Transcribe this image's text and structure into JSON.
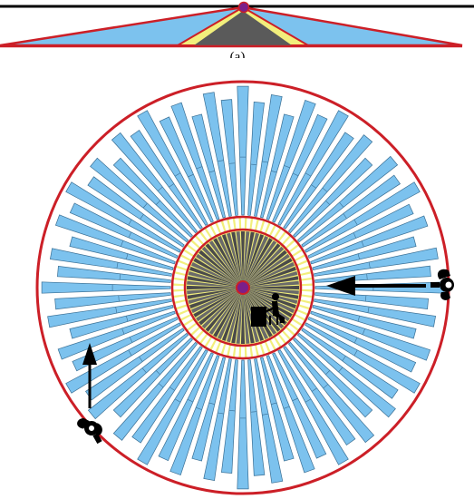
{
  "figure": {
    "caption_label": "(a)"
  },
  "diagram": {
    "num_shelves": 72,
    "colors": {
      "shelf_fill": "#7cc2ee",
      "shelf_stroke": "#3a6f94",
      "boundary_ring": "#cc1f27",
      "aisle_highlight": "#f2ef7c",
      "core_dark": "#4a4a4a",
      "center_node": "#7a1f8a",
      "arrow": "#000000",
      "side_view_fill": "#7cc2ee"
    },
    "figures": [
      {
        "name": "walking-person-right",
        "description_icon": "person-topdown-icon"
      },
      {
        "name": "walking-person-bottom-left",
        "description_icon": "person-topdown-icon"
      },
      {
        "name": "seated-operator",
        "description_icon": "desk-operator-icon"
      }
    ]
  }
}
